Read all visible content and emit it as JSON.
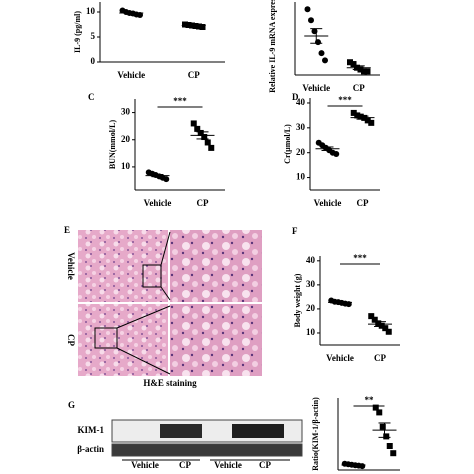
{
  "chart_data": [
    {
      "type": "dot",
      "y_label": "IL-9 (pg/ml)",
      "categories": [
        "Vehicle",
        "CP"
      ],
      "markers": [
        "circle",
        "square"
      ],
      "color": "#000000",
      "values": [
        [
          10.3,
          10.0,
          9.8,
          9.7,
          9.5,
          9.4
        ],
        [
          7.5,
          7.4,
          7.3,
          7.2,
          7.1,
          7.0
        ]
      ],
      "mean": [
        9.8,
        7.3
      ],
      "sem": [
        0.15,
        0.08
      ],
      "ylim": [
        0,
        12
      ],
      "yticks": [
        0,
        5,
        10
      ]
    },
    {
      "type": "dot",
      "y_label": "Relative IL-9 mRNA expression",
      "categories": [
        "Vehicle",
        "CP"
      ],
      "markers": [
        "circle",
        "square"
      ],
      "color": "#000000",
      "values": [
        [
          1.8,
          1.5,
          1.2,
          0.9,
          0.6,
          0.4
        ],
        [
          0.35,
          0.3,
          0.2,
          0.15,
          0.1,
          0.1
        ]
      ],
      "mean": [
        1.07,
        0.2
      ],
      "sem": [
        0.2,
        0.05
      ],
      "ylim": [
        0,
        2
      ]
    },
    {
      "type": "dot",
      "panel": "C",
      "y_label": "BUN(mmol/L)",
      "categories": [
        "Vehicle",
        "CP"
      ],
      "markers": [
        "circle",
        "square"
      ],
      "color": "#000000",
      "values": [
        [
          8.0,
          7.5,
          7.0,
          6.5,
          6.0,
          5.5
        ],
        [
          26.0,
          24.0,
          22.5,
          21.0,
          19.0,
          17.0
        ]
      ],
      "mean": [
        6.8,
        21.6
      ],
      "sem": [
        0.4,
        1.3
      ],
      "ylim": [
        1.5,
        35
      ],
      "yticks": [
        10,
        20,
        30
      ],
      "annotation": "***"
    },
    {
      "type": "dot",
      "panel": "D",
      "y_label": "Cr(μmol/L)",
      "categories": [
        "Vehicle",
        "CP"
      ],
      "markers": [
        "circle",
        "square"
      ],
      "color": "#000000",
      "values": [
        [
          24.0,
          23.0,
          22.0,
          21.0,
          20.0,
          19.5
        ],
        [
          36.0,
          35.0,
          34.5,
          34.0,
          33.0,
          32.0
        ]
      ],
      "mean": [
        21.6,
        34.1
      ],
      "sem": [
        0.7,
        0.6
      ],
      "ylim": [
        5,
        42
      ],
      "yticks": [
        10,
        20,
        30,
        40
      ],
      "annotation": "***"
    },
    {
      "type": "dot",
      "panel": "F",
      "y_label": "Body weight (g)",
      "categories": [
        "Vehicle",
        "CP"
      ],
      "markers": [
        "circle",
        "square"
      ],
      "color": "#000000",
      "values": [
        [
          23.5,
          23.0,
          22.8,
          22.5,
          22.2,
          22.0
        ],
        [
          17.0,
          15.5,
          14.0,
          13.0,
          12.0,
          10.5
        ]
      ],
      "mean": [
        22.7,
        13.7
      ],
      "sem": [
        0.2,
        1.0
      ],
      "ylim": [
        5,
        42
      ],
      "yticks": [
        10,
        20,
        30,
        40
      ],
      "annotation": "***"
    },
    {
      "type": "dot",
      "y_label": "Ratio(KIM-1/β-actin)",
      "categories": [
        "Vehicle",
        "CP"
      ],
      "markers": [
        "circle",
        "square"
      ],
      "color": "#000000",
      "values": [
        [
          0.3,
          0.2,
          0.1,
          0.0,
          -0.1,
          -0.2
        ],
        [
          12.0,
          11.0,
          8.0,
          6.0,
          4.0,
          2.5
        ]
      ],
      "mean": [
        0.05,
        7.3
      ],
      "sem": [
        0.1,
        1.5
      ],
      "ylim": [
        -1,
        14
      ],
      "annotation": "**"
    }
  ],
  "panel_E": {
    "letter": "E",
    "rows": [
      "Vehicle",
      "CP"
    ],
    "caption": "H&E staining"
  },
  "panel_G": {
    "letter": "G",
    "bands": [
      "KIM-1",
      "β-actin"
    ],
    "lanes": [
      "Vehicle",
      "CP",
      "Vehicle",
      "CP"
    ]
  }
}
